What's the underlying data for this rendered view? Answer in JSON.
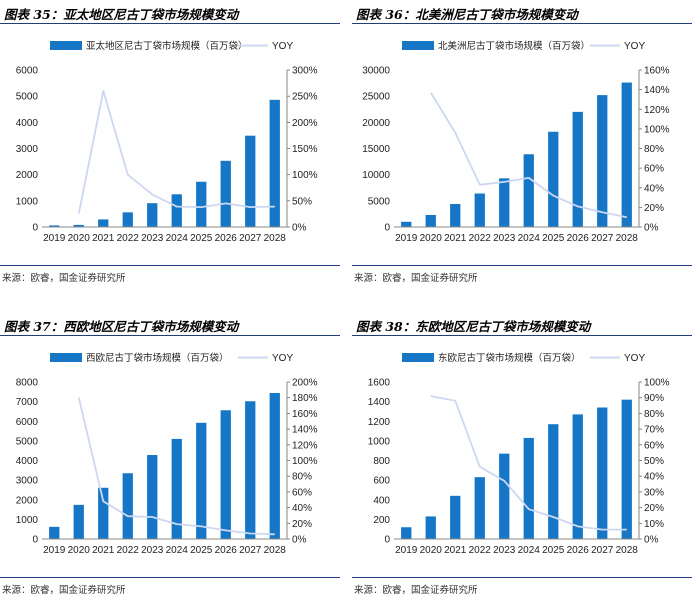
{
  "colors": {
    "bar": "#1677c6",
    "line": "#cdd7f0",
    "rule": "#1f3e7a"
  },
  "chart_data": [
    {
      "type": "bar",
      "title": "图表 35：亚太地区尼古丁袋市场规模变动",
      "source": "来源：欧睿，国金证券研究所",
      "categories": [
        "2019",
        "2020",
        "2021",
        "2022",
        "2023",
        "2024",
        "2025",
        "2026",
        "2027",
        "2028"
      ],
      "series": [
        {
          "name": "亚太地区尼古丁袋市场规模（百万袋）",
          "type": "bar",
          "axis": "left",
          "values": [
            60,
            80,
            290,
            560,
            910,
            1250,
            1730,
            2530,
            3490,
            4860
          ]
        },
        {
          "name": "YOY",
          "type": "line",
          "axis": "right",
          "values": [
            null,
            0.26,
            2.6,
            1.0,
            0.62,
            0.39,
            0.38,
            0.45,
            0.38,
            0.39
          ]
        }
      ],
      "ylim": [
        0,
        6000
      ],
      "yticks": [
        0,
        1000,
        2000,
        3000,
        4000,
        5000,
        6000
      ],
      "y2lim": [
        0,
        3.0
      ],
      "y2ticks": [
        "0%",
        "50%",
        "100%",
        "150%",
        "200%",
        "250%",
        "300%"
      ]
    },
    {
      "type": "bar",
      "title": "图表 36：北美洲尼古丁袋市场规模变动",
      "source": "来源：欧睿，国金证券研究所",
      "categories": [
        "2019",
        "2020",
        "2021",
        "2022",
        "2023",
        "2024",
        "2025",
        "2026",
        "2027",
        "2028"
      ],
      "series": [
        {
          "name": "北美洲尼古丁袋市场规模（百万袋）",
          "type": "bar",
          "axis": "left",
          "values": [
            1000,
            2300,
            4400,
            6400,
            9300,
            13900,
            18200,
            22000,
            25200,
            27600
          ]
        },
        {
          "name": "YOY",
          "type": "line",
          "axis": "right",
          "values": [
            null,
            1.37,
            0.96,
            0.43,
            0.46,
            0.5,
            0.32,
            0.21,
            0.15,
            0.1
          ]
        }
      ],
      "ylim": [
        0,
        30000
      ],
      "yticks": [
        0,
        5000,
        10000,
        15000,
        20000,
        25000,
        30000
      ],
      "y2lim": [
        0,
        1.6
      ],
      "y2ticks": [
        "0%",
        "20%",
        "40%",
        "60%",
        "80%",
        "100%",
        "120%",
        "140%",
        "160%"
      ]
    },
    {
      "type": "bar",
      "title": "图表 37：西欧地区尼古丁袋市场规模变动",
      "source": "来源：欧睿，国金证券研究所",
      "categories": [
        "2019",
        "2020",
        "2021",
        "2022",
        "2023",
        "2024",
        "2025",
        "2026",
        "2027",
        "2028"
      ],
      "series": [
        {
          "name": "西欧尼古丁袋市场规模（百万袋）",
          "type": "bar",
          "axis": "left",
          "values": [
            620,
            1740,
            2610,
            3350,
            4280,
            5100,
            5920,
            6560,
            7020,
            7440
          ]
        },
        {
          "name": "YOY",
          "type": "line",
          "axis": "right",
          "values": [
            null,
            1.8,
            0.48,
            0.29,
            0.28,
            0.19,
            0.16,
            0.11,
            0.07,
            0.06
          ]
        }
      ],
      "ylim": [
        0,
        8000
      ],
      "yticks": [
        0,
        1000,
        2000,
        3000,
        4000,
        5000,
        6000,
        7000,
        8000
      ],
      "y2lim": [
        0,
        2.0
      ],
      "y2ticks": [
        "0%",
        "20%",
        "40%",
        "60%",
        "80%",
        "100%",
        "120%",
        "140%",
        "160%",
        "180%",
        "200%"
      ]
    },
    {
      "type": "bar",
      "title": "图表 38：东欧地区尼古丁袋市场规模变动",
      "source": "来源：欧睿，国金证券研究所",
      "categories": [
        "2019",
        "2020",
        "2021",
        "2022",
        "2023",
        "2024",
        "2025",
        "2026",
        "2027",
        "2028"
      ],
      "series": [
        {
          "name": "东欧尼古丁袋市场规模（百万袋）",
          "type": "bar",
          "axis": "left",
          "values": [
            120,
            230,
            440,
            630,
            870,
            1030,
            1170,
            1270,
            1340,
            1420
          ]
        },
        {
          "name": "YOY",
          "type": "line",
          "axis": "right",
          "values": [
            null,
            0.91,
            0.88,
            0.46,
            0.37,
            0.19,
            0.14,
            0.08,
            0.06,
            0.06
          ]
        }
      ],
      "ylim": [
        0,
        1600
      ],
      "yticks": [
        0,
        200,
        400,
        600,
        800,
        1000,
        1200,
        1400,
        1600
      ],
      "y2lim": [
        0,
        1.0
      ],
      "y2ticks": [
        "0%",
        "10%",
        "20%",
        "30%",
        "40%",
        "50%",
        "60%",
        "70%",
        "80%",
        "90%",
        "100%"
      ]
    }
  ]
}
